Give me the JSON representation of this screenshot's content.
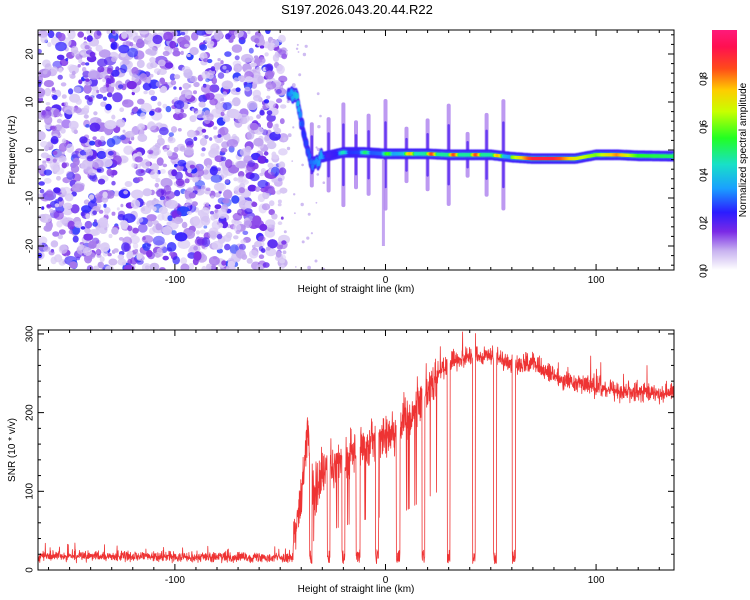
{
  "title": "S197.2026.043.20.44.R22",
  "chart_data": [
    {
      "type": "heatmap",
      "title": "S197.2026.043.20.44.R22",
      "xlabel": "Height of straight line (km)",
      "ylabel": "Frequency (Hz)",
      "xlim": [
        -165,
        137
      ],
      "ylim": [
        -25,
        25
      ],
      "xticks": [
        -100,
        0,
        100
      ],
      "xtick_labels": [
        "-100",
        "0",
        "100"
      ],
      "yticks": [
        -20,
        -10,
        0,
        10,
        20
      ],
      "ytick_labels": [
        "-20",
        "-10",
        "0",
        "10",
        "20"
      ],
      "colorbar": {
        "label": "Normalized spectral amplitude",
        "range": [
          0,
          1
        ],
        "ticks": [
          0.0,
          0.2,
          0.4,
          0.6,
          0.8
        ],
        "tick_labels": [
          "0.0",
          "0.2",
          "0.4",
          "0.6",
          "0.8"
        ]
      },
      "noise_region_x": [
        -165,
        -48
      ],
      "noise_amplitude_max": 0.2,
      "carrier_track": [
        {
          "x": -46,
          "freq": 12,
          "amp": 0.3
        },
        {
          "x": -42,
          "freq": 11,
          "amp": 0.4
        },
        {
          "x": -39,
          "freq": 4,
          "amp": 0.25
        },
        {
          "x": -35,
          "freq": -3,
          "amp": 0.3
        },
        {
          "x": -30,
          "freq": -1.5,
          "amp": 0.35
        },
        {
          "x": -20,
          "freq": -0.5,
          "amp": 0.45
        },
        {
          "x": -10,
          "freq": -0.5,
          "amp": 0.5
        },
        {
          "x": 0,
          "freq": -0.8,
          "amp": 0.55
        },
        {
          "x": 10,
          "freq": -0.8,
          "amp": 0.75
        },
        {
          "x": 20,
          "freq": -0.8,
          "amp": 0.85
        },
        {
          "x": 30,
          "freq": -1.0,
          "amp": 0.85
        },
        {
          "x": 40,
          "freq": -1.0,
          "amp": 0.85
        },
        {
          "x": 50,
          "freq": -1.0,
          "amp": 0.85
        },
        {
          "x": 60,
          "freq": -1.5,
          "amp": 0.6
        },
        {
          "x": 70,
          "freq": -1.8,
          "amp": 0.9
        },
        {
          "x": 80,
          "freq": -1.8,
          "amp": 0.9
        },
        {
          "x": 90,
          "freq": -1.8,
          "amp": 0.7
        },
        {
          "x": 100,
          "freq": -1.0,
          "amp": 0.6
        },
        {
          "x": 110,
          "freq": -1.0,
          "amp": 0.8
        },
        {
          "x": 120,
          "freq": -1.2,
          "amp": 0.55
        },
        {
          "x": 137,
          "freq": -1.3,
          "amp": 0.5
        }
      ],
      "dropout_streaks_x": [
        -35,
        -27,
        -20,
        -14,
        -8,
        0,
        10,
        20,
        30,
        39,
        48,
        56
      ]
    },
    {
      "type": "line",
      "xlabel": "Height of straight line (km)",
      "ylabel": "SNR (10 * v/v)",
      "xlim": [
        -165,
        137
      ],
      "ylim": [
        0,
        305
      ],
      "xticks": [
        -100,
        0,
        100
      ],
      "xtick_labels": [
        "-100",
        "0",
        "100"
      ],
      "yticks": [
        0,
        100,
        200,
        300
      ],
      "ytick_labels": [
        "0",
        "100",
        "200",
        "300"
      ],
      "series": [
        {
          "name": "SNR",
          "color": "#ee3333",
          "segments": [
            {
              "x": [
                -165,
                -130,
                -100,
                -70,
                -45
              ],
              "y": [
                18,
                17,
                17,
                16,
                16
              ]
            },
            {
              "x": [
                -44,
                -40,
                -37,
                -34,
                -30,
                -25,
                -20,
                -10,
                0,
                10,
                20,
                25,
                30,
                40,
                50,
                60,
                70,
                80,
                90,
                100,
                110,
                120,
                137
              ],
              "y": [
                40,
                80,
                180,
                90,
                120,
                130,
                140,
                160,
                170,
                190,
                230,
                250,
                265,
                270,
                272,
                262,
                262,
                245,
                238,
                232,
                228,
                225,
                225
              ]
            }
          ],
          "dropouts": [
            {
              "x": -35.5,
              "width": 1.2
            },
            {
              "x": -27,
              "width": 1.4
            },
            {
              "x": -20,
              "width": 1.4
            },
            {
              "x": -13,
              "width": 2.0
            },
            {
              "x": -4,
              "width": 1.5
            },
            {
              "x": 6,
              "width": 1.8
            },
            {
              "x": 18,
              "width": 1.4
            },
            {
              "x": 30,
              "width": 1.4
            },
            {
              "x": 42,
              "width": 1.4
            },
            {
              "x": 52,
              "width": 1.4
            },
            {
              "x": 61,
              "width": 1.6
            }
          ]
        }
      ]
    }
  ]
}
